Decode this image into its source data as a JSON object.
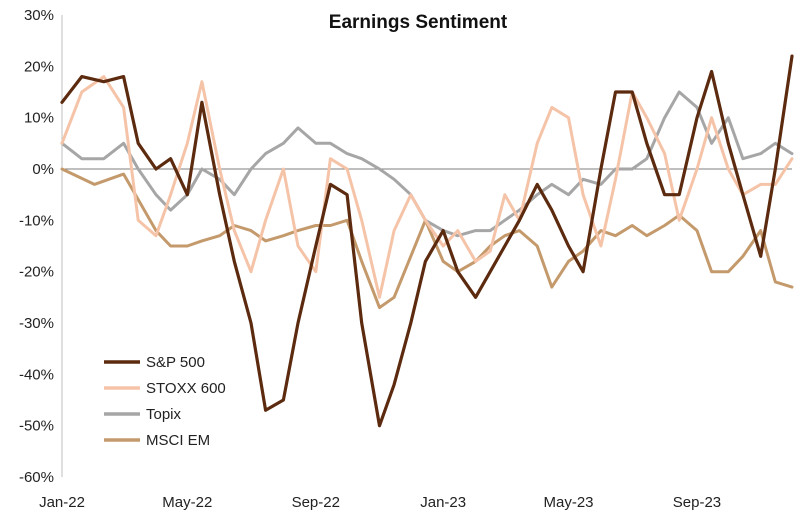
{
  "chart_data": {
    "type": "line",
    "title": "Earnings Sentiment",
    "xlabel": "",
    "ylabel": "",
    "ylim": [
      -60,
      30
    ],
    "y_ticks": [
      30,
      20,
      10,
      0,
      -10,
      -20,
      -30,
      -40,
      -50,
      -60
    ],
    "y_tick_labels": [
      "30%",
      "20%",
      "10%",
      "0%",
      "-10%",
      "-20%",
      "-30%",
      "-40%",
      "-50%",
      "-60%"
    ],
    "x_ticks": [
      "Jan-22",
      "May-22",
      "Sep-22",
      "Jan-23",
      "May-23",
      "Sep-23"
    ],
    "x_range": [
      "2022-01",
      "2023-12"
    ],
    "grid": false,
    "legend_position": "bottom-left",
    "colors": {
      "S&P 500": "#5c2a0e",
      "STOXX 600": "#f5c4a8",
      "Topix": "#a6a6a6",
      "MSCI EM": "#c49a6c"
    },
    "series": [
      {
        "name": "S&P 500",
        "x": [
          "2022-01-01",
          "2022-01-20",
          "2022-02-10",
          "2022-03-01",
          "2022-03-15",
          "2022-04-01",
          "2022-04-15",
          "2022-05-01",
          "2022-05-15",
          "2022-06-01",
          "2022-06-15",
          "2022-07-01",
          "2022-07-15",
          "2022-08-01",
          "2022-08-15",
          "2022-09-01",
          "2022-09-15",
          "2022-10-01",
          "2022-10-15",
          "2022-11-01",
          "2022-11-15",
          "2022-12-01",
          "2022-12-15",
          "2023-01-01",
          "2023-01-15",
          "2023-02-01",
          "2023-02-15",
          "2023-03-01",
          "2023-03-15",
          "2023-04-01",
          "2023-04-15",
          "2023-05-01",
          "2023-05-15",
          "2023-06-01",
          "2023-06-15",
          "2023-07-01",
          "2023-07-15",
          "2023-08-01",
          "2023-08-15",
          "2023-09-01",
          "2023-09-15",
          "2023-10-01",
          "2023-10-15",
          "2023-11-01",
          "2023-11-15",
          "2023-12-01"
        ],
        "values": [
          13,
          18,
          17,
          18,
          5,
          0,
          2,
          -5,
          13,
          -5,
          -18,
          -30,
          -47,
          -45,
          -30,
          -15,
          -3,
          -5,
          -30,
          -50,
          -42,
          -30,
          -18,
          -12,
          -20,
          -25,
          -20,
          -15,
          -10,
          -3,
          -8,
          -15,
          -20,
          0,
          15,
          15,
          5,
          -5,
          -5,
          10,
          19,
          5,
          -5,
          -17,
          0,
          22
        ]
      },
      {
        "name": "STOXX 600",
        "x": [
          "2022-01-01",
          "2022-01-20",
          "2022-02-10",
          "2022-03-01",
          "2022-03-15",
          "2022-04-01",
          "2022-04-15",
          "2022-05-01",
          "2022-05-15",
          "2022-06-01",
          "2022-06-15",
          "2022-07-01",
          "2022-07-15",
          "2022-08-01",
          "2022-08-15",
          "2022-09-01",
          "2022-09-15",
          "2022-10-01",
          "2022-10-15",
          "2022-11-01",
          "2022-11-15",
          "2022-12-01",
          "2022-12-15",
          "2023-01-01",
          "2023-01-15",
          "2023-02-01",
          "2023-02-15",
          "2023-03-01",
          "2023-03-15",
          "2023-04-01",
          "2023-04-15",
          "2023-05-01",
          "2023-05-15",
          "2023-06-01",
          "2023-06-15",
          "2023-07-01",
          "2023-07-15",
          "2023-08-01",
          "2023-08-15",
          "2023-09-01",
          "2023-09-15",
          "2023-10-01",
          "2023-10-15",
          "2023-11-01",
          "2023-11-15",
          "2023-12-01"
        ],
        "values": [
          5,
          15,
          18,
          12,
          -10,
          -13,
          -5,
          5,
          17,
          0,
          -12,
          -20,
          -10,
          0,
          -15,
          -20,
          2,
          0,
          -10,
          -25,
          -12,
          -5,
          -10,
          -15,
          -12,
          -18,
          -16,
          -5,
          -10,
          5,
          12,
          10,
          -5,
          -15,
          -2,
          15,
          10,
          3,
          -10,
          0,
          10,
          0,
          -5,
          -3,
          -3,
          2
        ]
      },
      {
        "name": "Topix",
        "x": [
          "2022-01-01",
          "2022-01-20",
          "2022-02-10",
          "2022-03-01",
          "2022-03-15",
          "2022-04-01",
          "2022-04-15",
          "2022-05-01",
          "2022-05-15",
          "2022-06-01",
          "2022-06-15",
          "2022-07-01",
          "2022-07-15",
          "2022-08-01",
          "2022-08-15",
          "2022-09-01",
          "2022-09-15",
          "2022-10-01",
          "2022-10-15",
          "2022-11-01",
          "2022-11-15",
          "2022-12-01",
          "2022-12-15",
          "2023-01-01",
          "2023-01-15",
          "2023-02-01",
          "2023-02-15",
          "2023-03-01",
          "2023-03-15",
          "2023-04-01",
          "2023-04-15",
          "2023-05-01",
          "2023-05-15",
          "2023-06-01",
          "2023-06-15",
          "2023-07-01",
          "2023-07-15",
          "2023-08-01",
          "2023-08-15",
          "2023-09-01",
          "2023-09-15",
          "2023-10-01",
          "2023-10-15",
          "2023-11-01",
          "2023-11-15",
          "2023-12-01"
        ],
        "values": [
          5,
          2,
          2,
          5,
          0,
          -5,
          -8,
          -5,
          0,
          -2,
          -5,
          0,
          3,
          5,
          8,
          5,
          5,
          3,
          2,
          0,
          -2,
          -5,
          -10,
          -12,
          -13,
          -12,
          -12,
          -10,
          -8,
          -5,
          -3,
          -5,
          -2,
          -3,
          0,
          0,
          2,
          10,
          15,
          12,
          5,
          10,
          2,
          3,
          5,
          3
        ]
      },
      {
        "name": "MSCI EM",
        "x": [
          "2022-01-01",
          "2022-02-01",
          "2022-03-01",
          "2022-04-01",
          "2022-04-15",
          "2022-05-01",
          "2022-05-15",
          "2022-06-01",
          "2022-06-15",
          "2022-07-01",
          "2022-07-15",
          "2022-08-01",
          "2022-08-15",
          "2022-09-01",
          "2022-09-15",
          "2022-10-01",
          "2022-10-15",
          "2022-11-01",
          "2022-11-15",
          "2022-12-01",
          "2022-12-15",
          "2023-01-01",
          "2023-01-15",
          "2023-02-01",
          "2023-02-15",
          "2023-03-01",
          "2023-03-15",
          "2023-04-01",
          "2023-04-15",
          "2023-05-01",
          "2023-05-15",
          "2023-06-01",
          "2023-06-15",
          "2023-07-01",
          "2023-07-15",
          "2023-08-01",
          "2023-08-15",
          "2023-09-01",
          "2023-09-15",
          "2023-10-01",
          "2023-10-15",
          "2023-11-01",
          "2023-11-15",
          "2023-12-01"
        ],
        "values": [
          0,
          -3,
          -1,
          -12,
          -15,
          -15,
          -14,
          -13,
          -11,
          -12,
          -14,
          -13,
          -12,
          -11,
          -11,
          -10,
          -18,
          -27,
          -25,
          -17,
          -10,
          -18,
          -20,
          -18,
          -15,
          -13,
          -12,
          -15,
          -23,
          -18,
          -16,
          -12,
          -13,
          -11,
          -13,
          -11,
          -9,
          -12,
          -20,
          -20,
          -17,
          -12,
          -22,
          -23
        ]
      }
    ]
  }
}
